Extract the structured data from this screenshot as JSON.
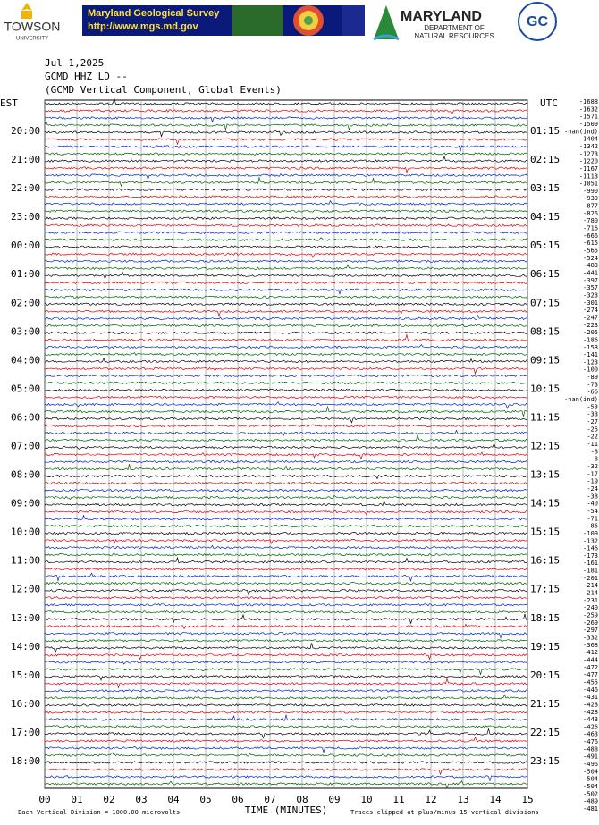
{
  "header": {
    "towson": "TOWSON",
    "towson_sub": "UNIVERSITY",
    "mgs_title": "Maryland Geological Survey",
    "mgs_url": "http://www.mgs.md.gov",
    "dnr_title": "MARYLAND",
    "dnr_line1": "DEPARTMENT OF",
    "dnr_line2": "NATURAL RESOURCES",
    "gc": "GC"
  },
  "plot": {
    "date": "Jul 1,2025",
    "station": "GCMD HHZ LD --",
    "description": "(GCMD Vertical Component, Global Events)",
    "left_zone": "EST",
    "right_zone": "UTC",
    "left_labels": [
      "20:00",
      "21:00",
      "22:00",
      "23:00",
      "00:00",
      "01:00",
      "02:00",
      "03:00",
      "04:00",
      "05:00",
      "06:00",
      "07:00",
      "08:00",
      "09:00",
      "10:00",
      "11:00",
      "12:00",
      "13:00",
      "14:00",
      "15:00",
      "16:00",
      "17:00",
      "18:00"
    ],
    "right_labels": [
      "01:15",
      "02:15",
      "03:15",
      "04:15",
      "05:15",
      "06:15",
      "07:15",
      "08:15",
      "09:15",
      "10:15",
      "11:15",
      "12:15",
      "13:15",
      "14:15",
      "15:15",
      "16:15",
      "17:15",
      "18:15",
      "19:15",
      "20:15",
      "21:15",
      "22:15",
      "23:15"
    ],
    "offsets": [
      "-1688",
      "-1632",
      "-1571",
      "-1509",
      "-nan(ind)",
      "-1404",
      "-1342",
      "-1273",
      "-1220",
      "-1167",
      "-1113",
      "-1051",
      "-990",
      "-939",
      "-877",
      "-826",
      "-780",
      "-716",
      "-666",
      "-615",
      "-565",
      "-524",
      "-483",
      "-441",
      "-397",
      "-357",
      "-323",
      "-301",
      "-274",
      "-247",
      "-223",
      "-205",
      "-186",
      "-158",
      "-141",
      "-123",
      "-100",
      "-89",
      "-73",
      "-66",
      "-nan(ind)",
      "-53",
      "-33",
      "-27",
      "-25",
      "-22",
      "-11",
      "-8",
      "-8",
      "-32",
      "-17",
      "-19",
      "-24",
      "-38",
      "-40",
      "-54",
      "-71",
      "-86",
      "-109",
      "-132",
      "-146",
      "-173",
      "-161",
      "-181",
      "-201",
      "-214",
      "-214",
      "-231",
      "-240",
      "-259",
      "-269",
      "-297",
      "-332",
      "-368",
      "-412",
      "-444",
      "-472",
      "-477",
      "-455",
      "-446",
      "-431",
      "-428",
      "-428",
      "-443",
      "-426",
      "-463",
      "-476",
      "-488",
      "-491",
      "-496",
      "-504",
      "-504",
      "-504",
      "-502",
      "-489",
      "-481"
    ],
    "x_ticks": [
      "00",
      "01",
      "02",
      "03",
      "04",
      "05",
      "06",
      "07",
      "08",
      "09",
      "10",
      "11",
      "12",
      "13",
      "14",
      "15"
    ],
    "x_title": "TIME (MINUTES)",
    "scale_note": "Each Vertical Division = 1000.00 microvolts",
    "clip_note": "Traces clipped at plus/minus 15 vertical divisions"
  }
}
